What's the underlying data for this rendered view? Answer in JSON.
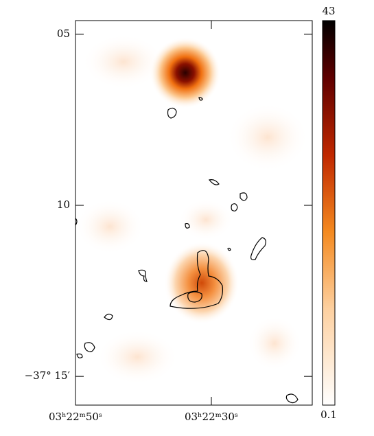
{
  "chart_data": {
    "type": "image",
    "xticks": [
      {
        "value": 50,
        "label": "03ʰ22ᵐ50ˢ"
      },
      {
        "value": 30,
        "label": "03ʰ22ᵐ30ˢ"
      }
    ],
    "xlim": [
      50,
      15.15
    ],
    "yticks": [
      {
        "value": 5,
        "label": "05"
      },
      {
        "value": 10,
        "label": "10"
      },
      {
        "value": 15,
        "label": "−37° 15′"
      }
    ],
    "ylim": [
      4.6,
      15.84
    ],
    "clim": [
      0.1,
      43
    ]
  }
}
